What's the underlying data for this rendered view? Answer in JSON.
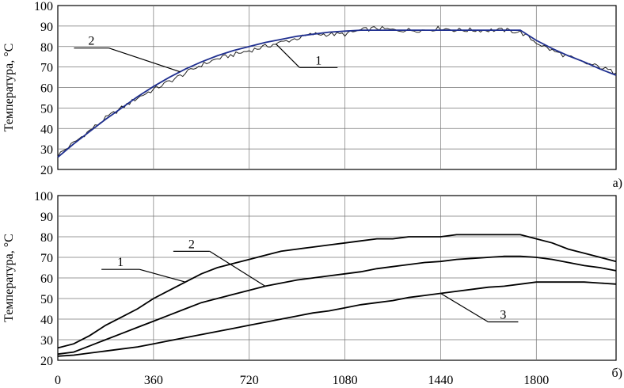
{
  "chart_data": [
    {
      "type": "line",
      "panel_label": "а)",
      "ylabel": "Температура, °С",
      "ylim": [
        20,
        100
      ],
      "yticks": [
        20,
        30,
        40,
        50,
        60,
        70,
        80,
        90,
        100
      ],
      "xlim": [
        0,
        2100
      ],
      "xticks": [
        0,
        360,
        720,
        1080,
        1440,
        1800
      ],
      "grid": true,
      "series": [
        {
          "name": "1",
          "color": "#222222",
          "noisy": true,
          "x": [
            0,
            60,
            120,
            180,
            240,
            300,
            360,
            420,
            480,
            540,
            600,
            660,
            720,
            780,
            840,
            900,
            960,
            1020,
            1080,
            1140,
            1200,
            1260,
            1320,
            1380,
            1440,
            1500,
            1560,
            1620,
            1680,
            1740,
            1800,
            1860,
            1920,
            1980,
            2040,
            2100
          ],
          "y": [
            27,
            33,
            39,
            45,
            50,
            55,
            59,
            63,
            67,
            71,
            74,
            76,
            78,
            80,
            82,
            84,
            86,
            86,
            86,
            88,
            89,
            88,
            88,
            88,
            89,
            88,
            88,
            88,
            88,
            87,
            82,
            78,
            75,
            72,
            70,
            67
          ]
        },
        {
          "name": "2",
          "color": "#1f2f8f",
          "noisy": false,
          "x": [
            0,
            60,
            120,
            180,
            240,
            300,
            360,
            420,
            480,
            540,
            600,
            660,
            720,
            780,
            840,
            900,
            960,
            1020,
            1080,
            1140,
            1200,
            1260,
            1320,
            1380,
            1440,
            1500,
            1560,
            1620,
            1680,
            1740,
            1800,
            1860,
            1920,
            1980,
            2040,
            2100
          ],
          "y": [
            26,
            32.5,
            38.5,
            44.5,
            50,
            55.5,
            60.5,
            65,
            69,
            72.5,
            75.5,
            78,
            80,
            82,
            83.5,
            85,
            86,
            87,
            87.5,
            88,
            88,
            88,
            88,
            88,
            88,
            88,
            88,
            88,
            88,
            88,
            83,
            79,
            75.5,
            72.5,
            69,
            66
          ]
        }
      ],
      "callouts": [
        {
          "text": "2",
          "series": "2",
          "anchor_x": 460
        },
        {
          "text": "1",
          "series": "1",
          "anchor_x": 820
        }
      ]
    },
    {
      "type": "line",
      "panel_label": "б)",
      "ylabel": "Температура, °С",
      "ylim": [
        20,
        100
      ],
      "yticks": [
        20,
        30,
        40,
        50,
        60,
        70,
        80,
        90,
        100
      ],
      "xlim": [
        0,
        2100
      ],
      "xticks": [
        0,
        360,
        720,
        1080,
        1440,
        1800
      ],
      "grid": true,
      "series": [
        {
          "name": "1",
          "color": "#000000",
          "x": [
            0,
            60,
            120,
            180,
            240,
            300,
            360,
            420,
            480,
            540,
            600,
            660,
            720,
            780,
            840,
            900,
            960,
            1020,
            1080,
            1140,
            1200,
            1260,
            1320,
            1380,
            1440,
            1500,
            1560,
            1620,
            1680,
            1740,
            1800,
            1860,
            1920,
            1980,
            2040,
            2100
          ],
          "y": [
            26,
            28,
            32,
            37,
            41,
            45,
            50,
            54,
            58,
            62,
            65,
            67,
            69,
            71,
            73,
            74,
            75,
            76,
            77,
            78,
            79,
            79,
            80,
            80,
            80,
            81,
            81,
            81,
            81,
            81,
            79,
            77,
            74,
            72,
            70,
            68
          ]
        },
        {
          "name": "2",
          "color": "#000000",
          "x": [
            0,
            60,
            120,
            180,
            240,
            300,
            360,
            420,
            480,
            540,
            600,
            660,
            720,
            780,
            840,
            900,
            960,
            1020,
            1080,
            1140,
            1200,
            1260,
            1320,
            1380,
            1440,
            1500,
            1560,
            1620,
            1680,
            1740,
            1800,
            1860,
            1920,
            1980,
            2040,
            2100
          ],
          "y": [
            23,
            24,
            27,
            30,
            33,
            36,
            39,
            42,
            45,
            48,
            50,
            52,
            54,
            56,
            57.5,
            59,
            60,
            61,
            62,
            63,
            64.5,
            65.5,
            66.5,
            67.5,
            68,
            69,
            69.5,
            70,
            70.5,
            70.5,
            70,
            69,
            67.5,
            66,
            65,
            63.5
          ]
        },
        {
          "name": "3",
          "color": "#000000",
          "x": [
            0,
            60,
            120,
            180,
            240,
            300,
            360,
            420,
            480,
            540,
            600,
            660,
            720,
            780,
            840,
            900,
            960,
            1020,
            1080,
            1140,
            1200,
            1260,
            1320,
            1380,
            1440,
            1500,
            1560,
            1620,
            1680,
            1740,
            1800,
            1860,
            1920,
            1980,
            2040,
            2100
          ],
          "y": [
            22,
            22.5,
            23.5,
            24.5,
            25.5,
            26.5,
            28,
            29.5,
            31,
            32.5,
            34,
            35.5,
            37,
            38.5,
            40,
            41.5,
            43,
            44,
            45.5,
            47,
            48,
            49,
            50.5,
            51.5,
            52.5,
            53.5,
            54.5,
            55.5,
            56,
            57,
            58,
            58,
            58,
            58,
            57.5,
            57
          ]
        }
      ],
      "callouts": [
        {
          "text": "1",
          "series": "1",
          "anchor_x": 480
        },
        {
          "text": "2",
          "series": "2",
          "anchor_x": 780
        },
        {
          "text": "3",
          "series": "3",
          "anchor_x": 1440
        }
      ]
    }
  ]
}
